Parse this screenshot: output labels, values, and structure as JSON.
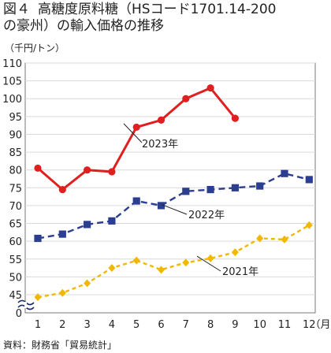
{
  "figure": {
    "number": "図４",
    "title_line1": "高糖度原料糖（HSコード1701.14-200",
    "title_line2": "の豪州）の輸入価格の推移",
    "unit": "（千円/トン）",
    "source": "資料：財務省「貿易統計」"
  },
  "chart_data": {
    "type": "line",
    "title": "高糖度原料糖（HSコード1701.14-200の豪州）の輸入価格の推移",
    "ylabel": "（千円/トン）",
    "xlabel": "（月）",
    "x": [
      1,
      2,
      3,
      4,
      5,
      6,
      7,
      8,
      9,
      10,
      11,
      12
    ],
    "x_tick_labels": [
      "1",
      "2",
      "3",
      "4",
      "5",
      "6",
      "7",
      "8",
      "9",
      "10",
      "11",
      "12"
    ],
    "x_unit_label": "（月）",
    "ylim": [
      40,
      110
    ],
    "y_ticks": [
      45,
      50,
      55,
      60,
      65,
      70,
      75,
      80,
      85,
      90,
      95,
      100,
      105,
      110
    ],
    "y_zero_label": "0",
    "y_axis_break": true,
    "grid": "horizontal",
    "series": [
      {
        "name": "2023年",
        "color": "#e02020",
        "marker": "circle",
        "line": "solid",
        "values": [
          80.5,
          74.5,
          80.0,
          79.5,
          92.0,
          94.0,
          100.0,
          103.0,
          94.5,
          null,
          null,
          null
        ]
      },
      {
        "name": "2022年",
        "color": "#2c3e8f",
        "marker": "square",
        "line": "dashed",
        "values": [
          60.8,
          62.0,
          64.7,
          65.7,
          71.3,
          70.0,
          74.0,
          74.5,
          75.0,
          75.5,
          79.0,
          77.3
        ]
      },
      {
        "name": "2021年",
        "color": "#f0b800",
        "marker": "diamond",
        "line": "dashed",
        "values": [
          44.3,
          45.5,
          48.2,
          52.5,
          54.6,
          52.0,
          54.0,
          55.2,
          56.9,
          60.8,
          60.5,
          64.5
        ]
      }
    ]
  }
}
